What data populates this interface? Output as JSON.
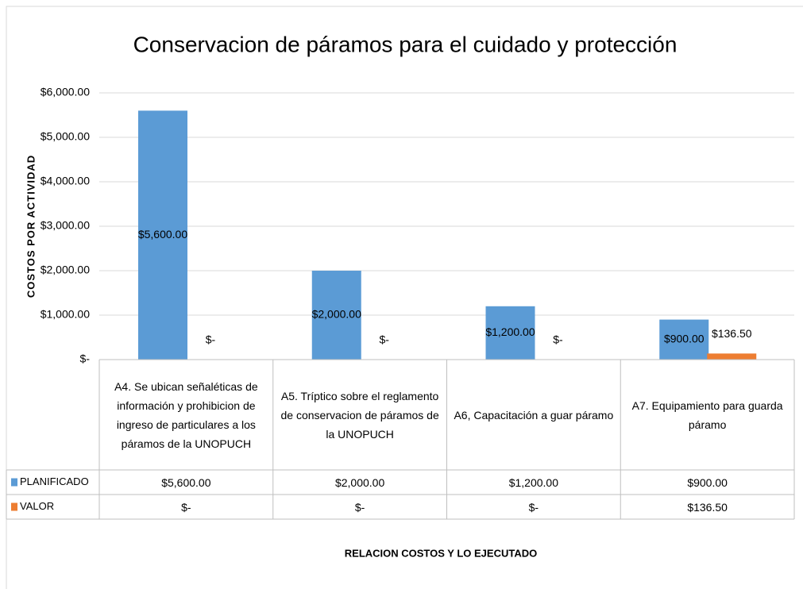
{
  "chart_data": {
    "type": "bar",
    "title": "Conservacion de páramos para el cuidado y protección",
    "y_label": "COSTOS POR ACTIVIDAD",
    "x_label": "RELACION COSTOS Y LO EJECUTADO",
    "categories": [
      "A4. Se ubican señaléticas de información  y prohibicion de ingreso de particulares a los páramos de la UNOPUCH",
      "A5. Tríptico sobre el reglamento de conservacion de páramos de la UNOPUCH",
      "A6, Capacitación a guar páramo",
      "A7. Equipamiento para guarda páramo"
    ],
    "series": [
      {
        "name": "PLANIFICADO",
        "color": "#5b9bd5",
        "values": [
          5600,
          2000,
          1200,
          900
        ],
        "value_labels": [
          "$5,600.00",
          "$2,000.00",
          "$1,200.00",
          "$900.00"
        ]
      },
      {
        "name": "VALOR",
        "color": "#ed7d31",
        "values": [
          0,
          0,
          0,
          136.5
        ],
        "value_labels": [
          "$-",
          "$-",
          "$-",
          "$136.50"
        ]
      }
    ],
    "ylim": [
      0,
      6000
    ],
    "yticks": [
      {
        "value": 0,
        "label": "$-"
      },
      {
        "value": 1000,
        "label": "$1,000.00"
      },
      {
        "value": 2000,
        "label": "$2,000.00"
      },
      {
        "value": 3000,
        "label": "$3,000.00"
      },
      {
        "value": 4000,
        "label": "$4,000.00"
      },
      {
        "value": 5000,
        "label": "$5,000.00"
      },
      {
        "value": 6000,
        "label": "$6,000.00"
      }
    ],
    "grid": true,
    "data_table": true
  }
}
